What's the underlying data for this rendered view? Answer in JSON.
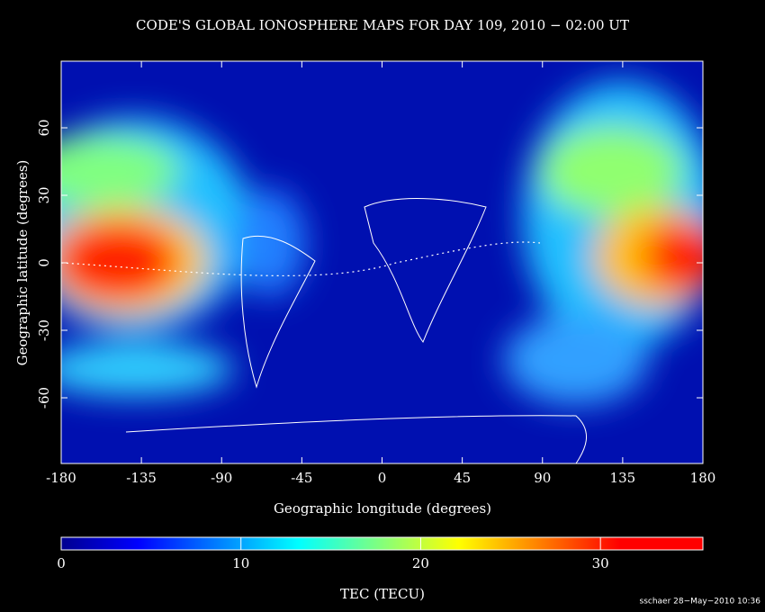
{
  "chart_data": {
    "type": "map",
    "title": "CODE'S GLOBAL IONOSPHERE MAPS FOR DAY 109, 2010 − 02:00 UT",
    "xlabel": "Geographic longitude (degrees)",
    "ylabel": "Geographic latitude (degrees)",
    "xlim": [
      -180,
      180
    ],
    "xticks": [
      -180,
      -135,
      -90,
      -45,
      0,
      45,
      90,
      135,
      180
    ],
    "ylim": [
      -90,
      90
    ],
    "yticks": [
      -60,
      -30,
      0,
      30,
      60
    ],
    "colorbar": {
      "label": "TEC (TECU)",
      "lim": [
        0,
        35.7
      ],
      "ticks": [
        0,
        10,
        20,
        30
      ]
    },
    "footer": "sschaer 28−May−2010 10:36"
  }
}
